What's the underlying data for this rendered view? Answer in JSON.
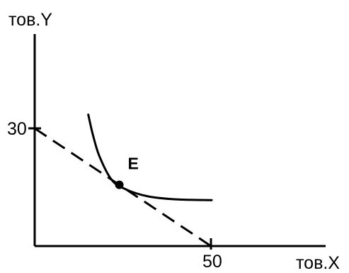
{
  "chart_data": {
    "type": "line",
    "title": "",
    "ylabel": "тов.Y",
    "xlabel": "тов.X",
    "xlim": [
      0,
      90
    ],
    "ylim": [
      0,
      56
    ],
    "y_ticks": [
      {
        "value": 30,
        "label": "30"
      }
    ],
    "x_ticks": [
      {
        "value": 50,
        "label": "50"
      }
    ],
    "series": [
      {
        "kind": "budget_line",
        "style": "dashed",
        "points": [
          [
            0,
            30
          ],
          [
            50,
            0
          ]
        ]
      },
      {
        "kind": "indifference_curve",
        "style": "solid",
        "points": [
          [
            15.2,
            33.5
          ],
          [
            16.5,
            28.4
          ],
          [
            18.4,
            22.8
          ],
          [
            21.9,
            16.8
          ],
          [
            26.0,
            14.4
          ],
          [
            32.0,
            12.7
          ],
          [
            40.0,
            11.9
          ],
          [
            50.2,
            11.7
          ]
        ]
      }
    ],
    "points": [
      {
        "label": "E",
        "x": 24.0,
        "y": 15.6
      }
    ],
    "grid": false,
    "legend": "none"
  }
}
